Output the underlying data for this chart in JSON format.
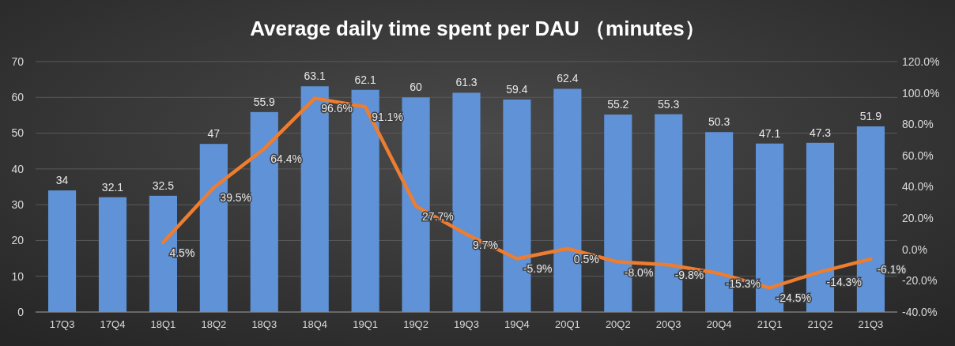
{
  "chart_data": {
    "type": "bar",
    "title": "Average daily time spent per DAU （minutes）",
    "categories": [
      "17Q3",
      "17Q4",
      "18Q1",
      "18Q2",
      "18Q3",
      "18Q4",
      "19Q1",
      "19Q2",
      "19Q3",
      "19Q4",
      "20Q1",
      "20Q2",
      "20Q3",
      "20Q4",
      "21Q1",
      "21Q2",
      "21Q3"
    ],
    "series": [
      {
        "color": "#5f92d6",
        "values": [
          34,
          32.1,
          32.5,
          47,
          55.9,
          63.1,
          62.1,
          60,
          61.3,
          59.4,
          62.4,
          55.2,
          55.3,
          50.3,
          47.1,
          47.3,
          51.9
        ],
        "value_labels": [
          "34",
          "32.1",
          "32.5",
          "47",
          "55.9",
          "63.1",
          "62.1",
          "60",
          "61.3",
          "59.4",
          "62.4",
          "55.2",
          "55.3",
          "50.3",
          "47.1",
          "47.3",
          "51.9"
        ]
      },
      {
        "type": "line",
        "axis": "y2",
        "color": "#ed7d31",
        "values": [
          null,
          null,
          4.5,
          39.5,
          64.4,
          96.6,
          91.1,
          27.7,
          9.7,
          -5.9,
          0.5,
          -8.0,
          -9.8,
          -15.3,
          -24.5,
          -14.3,
          -6.1
        ],
        "value_labels": [
          null,
          null,
          "4.5%",
          "39.5%",
          "64.4%",
          "96.6%",
          "91.1%",
          "27.7%",
          "9.7%",
          "-5.9%",
          "0.5%",
          "-8.0%",
          "-9.8%",
          "-15.3%",
          "-24.5%",
          "-14.3%",
          "-6.1%"
        ]
      }
    ],
    "ylim": [
      0,
      70
    ],
    "yticks": [
      0,
      10,
      20,
      30,
      40,
      50,
      60,
      70
    ],
    "y2lim": [
      -40,
      120
    ],
    "y2ticks": [
      {
        "value": -40,
        "label": "-40.0%"
      },
      {
        "value": -20,
        "label": "-20.0%"
      },
      {
        "value": 0,
        "label": "0.0%"
      },
      {
        "value": 20,
        "label": "20.0%"
      },
      {
        "value": 40,
        "label": "40.0%"
      },
      {
        "value": 60,
        "label": "60.0%"
      },
      {
        "value": 80,
        "label": "80.0%"
      },
      {
        "value": 100,
        "label": "100.0%"
      },
      {
        "value": 120,
        "label": "120.0%"
      }
    ],
    "grid": "y"
  }
}
